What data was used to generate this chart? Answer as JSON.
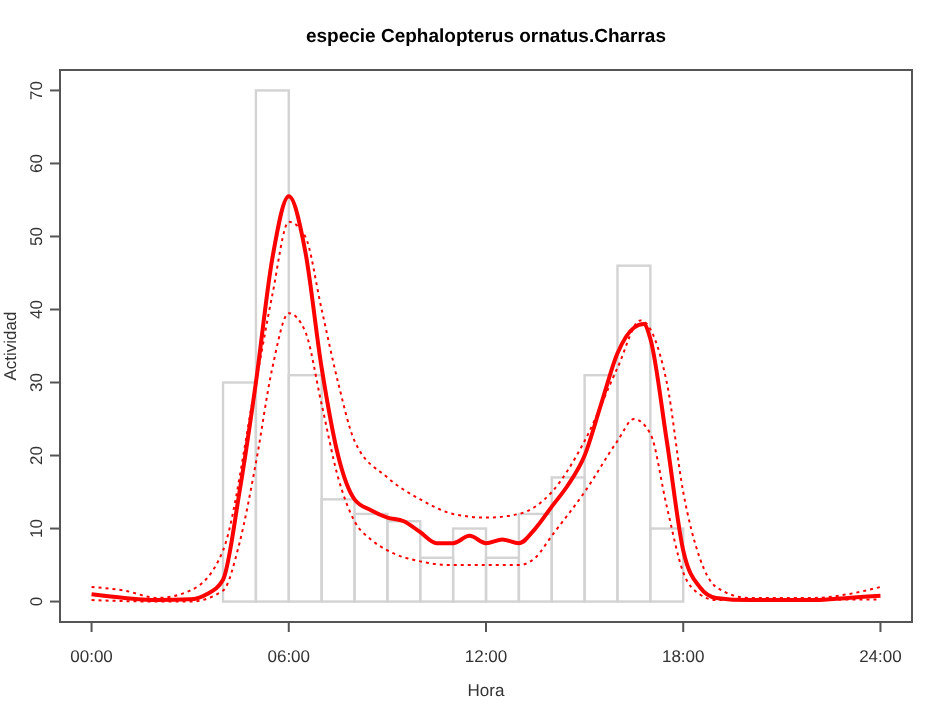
{
  "chart_data": {
    "type": "histogram",
    "title": "especie Cephalopterus ornatus.Charras",
    "xlabel": "Hora",
    "ylabel": "Actividad",
    "bins": [
      0,
      1,
      2,
      3,
      4,
      5,
      6,
      7,
      8,
      9,
      10,
      11,
      12,
      13,
      14,
      15,
      16,
      17,
      18,
      19,
      20,
      21,
      22,
      23,
      24
    ],
    "values": [
      0,
      0,
      0,
      0,
      30,
      70,
      31,
      14,
      12,
      11,
      6,
      10,
      6,
      12,
      17,
      31,
      46,
      10,
      0,
      0,
      0,
      0,
      0,
      0
    ],
    "color": "#d3d3d3",
    "series": [
      {
        "type": "line",
        "color": "#ff0000",
        "line_style": "solid",
        "x": [
          0,
          1,
          2,
          3,
          3.5,
          4,
          4.5,
          5,
          5.5,
          6,
          6.5,
          7,
          7.5,
          8,
          8.5,
          9,
          9.5,
          10,
          10.5,
          11,
          11.5,
          12,
          12.5,
          13,
          13.5,
          14,
          14.5,
          15,
          15.5,
          16,
          16.5,
          16.8,
          17,
          17.5,
          18,
          18.5,
          19,
          20,
          22,
          23,
          24
        ],
        "values": [
          1,
          0.5,
          0.2,
          0.3,
          1,
          3,
          15,
          30,
          47,
          55.5,
          48,
          32,
          20,
          14,
          12.5,
          11.5,
          11,
          9.5,
          8,
          8,
          9,
          8,
          8.5,
          8,
          10,
          13,
          16,
          20,
          27,
          34,
          37.5,
          38,
          36,
          22,
          7,
          2,
          0.5,
          0.2,
          0.2,
          0.5,
          0.8
        ]
      },
      {
        "type": "line",
        "color": "#ff0000",
        "line_style": "dotted",
        "x": [
          0,
          1,
          2,
          3,
          4,
          5,
          5.5,
          6,
          6.5,
          7,
          7.5,
          8,
          9,
          10,
          11,
          12,
          13,
          14,
          15,
          16,
          16.7,
          17.5,
          18,
          18.5,
          19,
          20,
          22,
          23,
          24
        ],
        "values": [
          2,
          1.5,
          0.5,
          1.5,
          7,
          30,
          42,
          52,
          50,
          40,
          30,
          22,
          17,
          14,
          12,
          11.5,
          12,
          15,
          22,
          32,
          38.5,
          30,
          15,
          6,
          2,
          0.5,
          0.5,
          1,
          2
        ]
      },
      {
        "type": "line",
        "color": "#ff0000",
        "line_style": "dotted",
        "x": [
          0,
          2,
          3,
          4,
          4.5,
          5,
          5.5,
          6,
          6.5,
          7,
          7.5,
          8,
          8.5,
          9,
          10,
          11,
          12,
          13,
          13.5,
          14,
          15,
          16,
          16.5,
          17,
          17.5,
          18,
          18.5,
          19,
          24
        ],
        "values": [
          0.2,
          0,
          0,
          1.5,
          8,
          19,
          32,
          39.5,
          37,
          27,
          17,
          11,
          8.5,
          7,
          5.5,
          5,
          5,
          5,
          6,
          9,
          15,
          22,
          25,
          23,
          13,
          4,
          1,
          0.2,
          0.3
        ]
      }
    ],
    "xlim": [
      -0.96,
      24.96
    ],
    "ylim": [
      -2.8,
      72.8
    ],
    "xticks": [
      {
        "value": 0,
        "label": "00:00"
      },
      {
        "value": 6,
        "label": "06:00"
      },
      {
        "value": 12,
        "label": "12:00"
      },
      {
        "value": 18,
        "label": "18:00"
      },
      {
        "value": 24,
        "label": "24:00"
      }
    ],
    "yticks": [
      0,
      10,
      20,
      30,
      40,
      50,
      60,
      70
    ],
    "grid": false
  }
}
